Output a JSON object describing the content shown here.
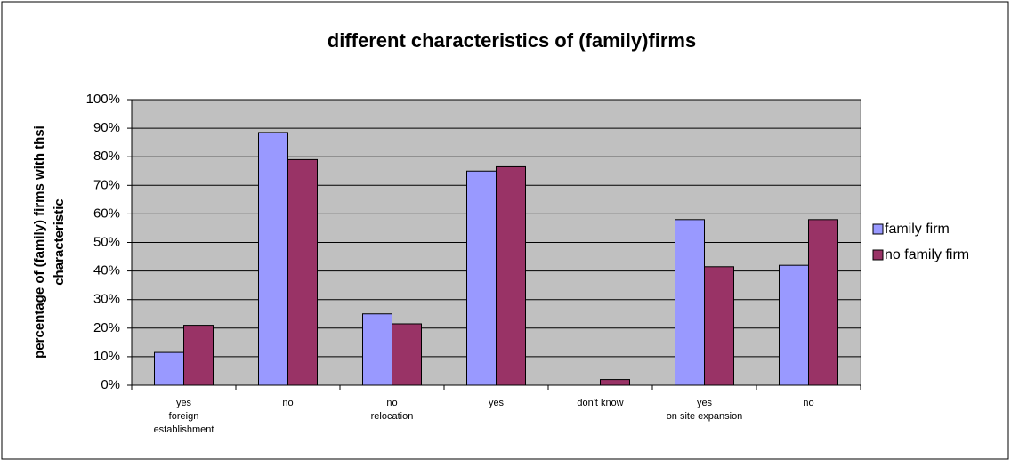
{
  "chart_data": {
    "type": "bar",
    "title": "different characteristics of (family)firms",
    "y_label": [
      "percentage of (family) firms with thsi",
      "characteristic"
    ],
    "categories": [
      [
        "yes",
        "foreign",
        "establishment"
      ],
      [
        "no"
      ],
      [
        "no",
        "relocation"
      ],
      [
        "yes"
      ],
      [
        "don't know"
      ],
      [
        "yes",
        "on site expansion"
      ],
      [
        "no"
      ]
    ],
    "series": [
      {
        "name": "family firm",
        "color": "#9999ff",
        "values": [
          11.5,
          88.5,
          25,
          75,
          0,
          58,
          42
        ]
      },
      {
        "name": "no family firm",
        "color": "#993366",
        "values": [
          21,
          79,
          21.5,
          76.5,
          2,
          41.5,
          58
        ]
      }
    ],
    "ylim": [
      0,
      100
    ],
    "yticks": [
      {
        "value": 0,
        "label": "0%"
      },
      {
        "value": 10,
        "label": "10%"
      },
      {
        "value": 20,
        "label": "20%"
      },
      {
        "value": 30,
        "label": "30%"
      },
      {
        "value": 40,
        "label": "40%"
      },
      {
        "value": 50,
        "label": "50%"
      },
      {
        "value": 60,
        "label": "60%"
      },
      {
        "value": 70,
        "label": "70%"
      },
      {
        "value": 80,
        "label": "80%"
      },
      {
        "value": 90,
        "label": "90%"
      },
      {
        "value": 100,
        "label": "100%"
      }
    ],
    "grid": true,
    "legend": "right"
  }
}
